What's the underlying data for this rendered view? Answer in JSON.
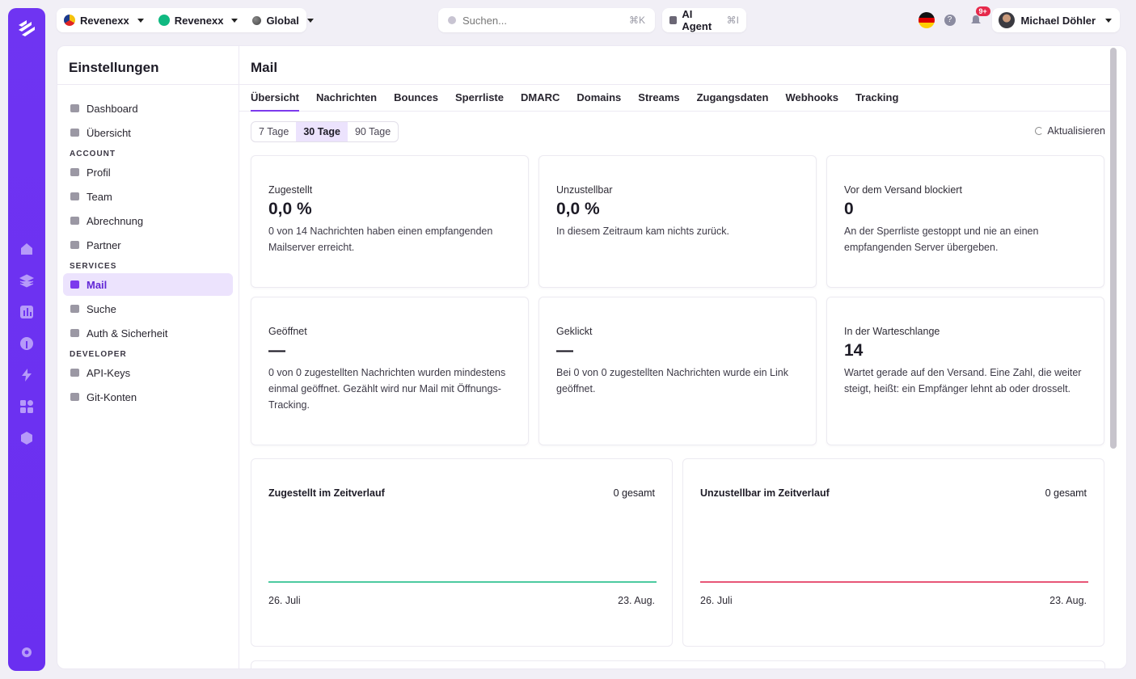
{
  "topbar": {
    "org_selector": "Revenexx",
    "project_selector": "Revenexx",
    "region_selector": "Global",
    "search": {
      "placeholder": "Suchen...",
      "shortcut": "⌘K"
    },
    "agent": {
      "label": "AI Agent",
      "shortcut": "⌘I"
    },
    "notifications_badge": "9+",
    "user_name": "Michael Döhler"
  },
  "colors": {
    "accent": "#7c3aed",
    "delivered_line": "#10b981",
    "bounced_line": "#e11d48",
    "rail": "#6f34f2"
  },
  "sidebar": {
    "title": "Einstellungen",
    "items_top": [
      {
        "label": "Dashboard",
        "icon": "dashboard-icon"
      },
      {
        "label": "Übersicht",
        "icon": "overview-icon"
      }
    ],
    "section_account": "ACCOUNT",
    "items_account": [
      {
        "label": "Profil",
        "icon": "user-icon"
      },
      {
        "label": "Team",
        "icon": "team-icon"
      },
      {
        "label": "Abrechnung",
        "icon": "billing-icon"
      },
      {
        "label": "Partner",
        "icon": "partner-icon"
      }
    ],
    "section_services": "SERVICES",
    "items_services": [
      {
        "label": "Mail",
        "icon": "mail-icon",
        "active": true
      },
      {
        "label": "Suche",
        "icon": "search-icon"
      },
      {
        "label": "Auth & Sicherheit",
        "icon": "shield-icon"
      }
    ],
    "section_developer": "DEVELOPER",
    "items_developer": [
      {
        "label": "API-Keys",
        "icon": "key-icon"
      },
      {
        "label": "Git-Konten",
        "icon": "git-icon"
      }
    ]
  },
  "main": {
    "title": "Mail",
    "tabs": [
      "Übersicht",
      "Nachrichten",
      "Bounces",
      "Sperrliste",
      "DMARC",
      "Domains",
      "Streams",
      "Zugangsdaten",
      "Webhooks",
      "Tracking"
    ],
    "range": [
      "7 Tage",
      "30 Tage",
      "90 Tage"
    ],
    "refresh": "Aktualisieren",
    "cards": [
      {
        "label": "Zugestellt",
        "value": "0,0 %",
        "desc": "0 von 14 Nachrichten haben einen empfangenden Mailserver erreicht."
      },
      {
        "label": "Unzustellbar",
        "value": "0,0 %",
        "desc": "In diesem Zeitraum kam nichts zurück."
      },
      {
        "label": "Vor dem Versand blockiert",
        "value": "0",
        "desc": "An der Sperrliste gestoppt und nie an einen empfangenden Server übergeben."
      },
      {
        "label": "Geöffnet",
        "value": "—",
        "desc": "0 von 0 zugestellten Nachrichten wurden mindestens einmal geöffnet. Gezählt wird nur Mail mit Öffnungs-Tracking."
      },
      {
        "label": "Geklickt",
        "value": "—",
        "desc": "Bei 0 von 0 zugestellten Nachrichten wurde ein Link geöffnet."
      },
      {
        "label": "In der Warteschlange",
        "value": "14",
        "desc": "Wartet gerade auf den Versand. Eine Zahl, die weiter steigt, heißt: ein Empfänger lehnt ab oder drosselt."
      }
    ]
  },
  "chart_data": [
    {
      "type": "line",
      "title": "Zugestellt im Zeitverlauf",
      "total": "0 gesamt",
      "x_start": "26. Juli",
      "x_end": "23. Aug.",
      "series": [
        {
          "values": [
            0,
            0
          ]
        }
      ]
    },
    {
      "type": "line",
      "title": "Unzustellbar im Zeitverlauf",
      "total": "0 gesamt",
      "x_start": "26. Juli",
      "x_end": "23. Aug.",
      "series": [
        {
          "values": [
            0,
            0
          ]
        }
      ]
    }
  ]
}
